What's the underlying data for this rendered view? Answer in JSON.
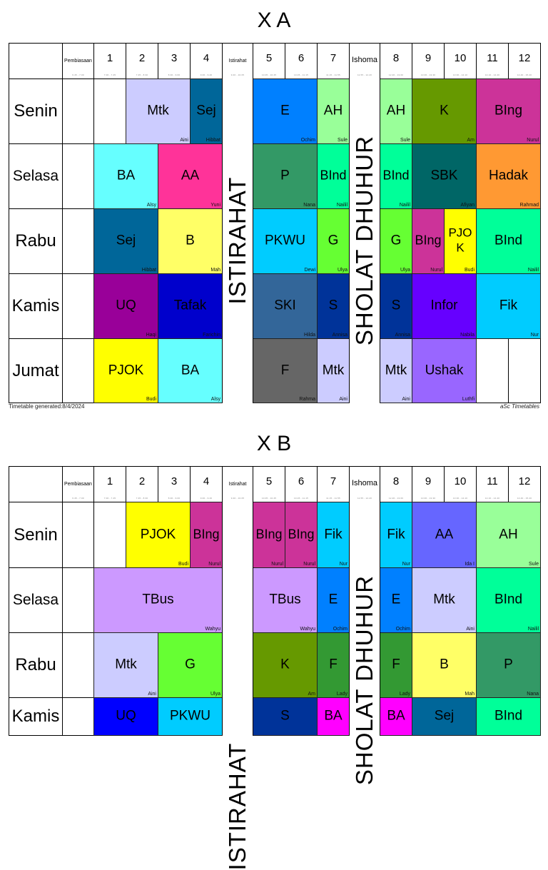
{
  "timetables": [
    {
      "title": "X A",
      "footer_left": "Timetable generated:8/4/2024",
      "footer_right": "aSc Timetables",
      "break_label": "ISTIRAHAT",
      "prayer_label": "SHOLAT DHUHUR",
      "columns": [
        {
          "label": "",
          "time": ""
        },
        {
          "label": "Pembiasaan",
          "time": "6.45 - 7.00"
        },
        {
          "label": "1",
          "time": "7.00 - 7.45"
        },
        {
          "label": "2",
          "time": "7.45 - 8.30"
        },
        {
          "label": "3",
          "time": "8.30 - 9.00"
        },
        {
          "label": "4",
          "time": "9.00 - 9.40"
        },
        {
          "label": "Istirahat",
          "time": "9.40 - 10.05"
        },
        {
          "label": "5",
          "time": "10.05 - 10.45"
        },
        {
          "label": "6",
          "time": "10.45 - 11.15"
        },
        {
          "label": "7",
          "time": "11.15 - 11.55"
        },
        {
          "label": "Ishoma",
          "time": "11.55 - 12.20"
        },
        {
          "label": "8",
          "time": "12.20 - 13.00"
        },
        {
          "label": "9",
          "time": "13.00 - 13.30"
        },
        {
          "label": "10",
          "time": "13.30 - 14.10"
        },
        {
          "label": "11",
          "time": "14.10 - 14.40"
        },
        {
          "label": "12",
          "time": "14.40 - 15.20"
        }
      ],
      "days": [
        "Senin",
        "Selasa",
        "Rabu",
        "Kamis",
        "Jumat"
      ],
      "lessons": [
        {
          "day": 0,
          "subject": "Mtk",
          "teacher": "Aini",
          "color": "#ccccff"
        },
        {
          "day": 0,
          "subject": "Sej",
          "teacher": "Hibbat",
          "color": "#006699"
        },
        {
          "day": 0,
          "subject": "E",
          "teacher": "Ochim",
          "color": "#0080ff"
        },
        {
          "day": 0,
          "subject": "AH",
          "teacher": "Sule",
          "color": "#99ff99"
        },
        {
          "day": 0,
          "subject": "AH",
          "teacher": "Sule",
          "color": "#99ff99"
        },
        {
          "day": 0,
          "subject": "K",
          "teacher": "Am",
          "color": "#669900"
        },
        {
          "day": 0,
          "subject": "BIng",
          "teacher": "Nurul",
          "color": "#cc3399"
        },
        {
          "day": 1,
          "subject": "BA",
          "teacher": "Alsy",
          "color": "#66ffff"
        },
        {
          "day": 1,
          "subject": "AA",
          "teacher": "Yuni",
          "color": "#ff3399"
        },
        {
          "day": 1,
          "subject": "P",
          "teacher": "Nana",
          "color": "#339966"
        },
        {
          "day": 1,
          "subject": "BInd",
          "teacher": "Nailil",
          "color": "#00ff99"
        },
        {
          "day": 1,
          "subject": "BInd",
          "teacher": "Nailil",
          "color": "#00ff99"
        },
        {
          "day": 1,
          "subject": "SBK",
          "teacher": "Afiyan",
          "color": "#006666"
        },
        {
          "day": 1,
          "subject": "Hadak",
          "teacher": "Rahmad",
          "color": "#ff9933"
        },
        {
          "day": 2,
          "subject": "Sej",
          "teacher": "Hibbat",
          "color": "#006699"
        },
        {
          "day": 2,
          "subject": "B",
          "teacher": "Mah",
          "color": "#ffff66"
        },
        {
          "day": 2,
          "subject": "PKWU",
          "teacher": "Dewi",
          "color": "#00ccff"
        },
        {
          "day": 2,
          "subject": "G",
          "teacher": "Ulya",
          "color": "#66ff33"
        },
        {
          "day": 2,
          "subject": "G",
          "teacher": "Ulya",
          "color": "#66ff33"
        },
        {
          "day": 2,
          "subject": "BIng",
          "teacher": "Nurul",
          "color": "#cc3399"
        },
        {
          "day": 2,
          "subject": "PJOK",
          "teacher": "Budi",
          "color": "#ffff00"
        },
        {
          "day": 2,
          "subject": "BInd",
          "teacher": "Nailil",
          "color": "#00ff99"
        },
        {
          "day": 3,
          "subject": "UQ",
          "teacher": "Haqi",
          "color": "#990099"
        },
        {
          "day": 3,
          "subject": "Tafak",
          "teacher": "Farichin",
          "color": "#0000cc"
        },
        {
          "day": 3,
          "subject": "SKI",
          "teacher": "Hilda",
          "color": "#336699"
        },
        {
          "day": 3,
          "subject": "S",
          "teacher": "Annisa",
          "color": "#003399"
        },
        {
          "day": 3,
          "subject": "S",
          "teacher": "Annisa",
          "color": "#003399"
        },
        {
          "day": 3,
          "subject": "Infor",
          "teacher": "Nabila",
          "color": "#6600ff"
        },
        {
          "day": 3,
          "subject": "Fik",
          "teacher": "Nur",
          "color": "#00ccff"
        },
        {
          "day": 4,
          "subject": "PJOK",
          "teacher": "Budi",
          "color": "#ffff00"
        },
        {
          "day": 4,
          "subject": "BA",
          "teacher": "Alsy",
          "color": "#66ffff"
        },
        {
          "day": 4,
          "subject": "F",
          "teacher": "Rahma",
          "color": "#666666"
        },
        {
          "day": 4,
          "subject": "Mtk",
          "teacher": "Aini",
          "color": "#ccccff"
        },
        {
          "day": 4,
          "subject": "Mtk",
          "teacher": "Aini",
          "color": "#ccccff"
        },
        {
          "day": 4,
          "subject": "Ushak",
          "teacher": "Luthfi",
          "color": "#9966ff"
        }
      ]
    },
    {
      "title": "X B",
      "break_label": "ISTIRAHAT",
      "prayer_label": "SHOLAT DHUHUR",
      "days": [
        "Senin",
        "Selasa",
        "Rabu",
        "Kamis"
      ],
      "lessons": [
        {
          "day": 0,
          "subject": "PJOK",
          "teacher": "Budi",
          "color": "#ffff00"
        },
        {
          "day": 0,
          "subject": "BIng",
          "teacher": "Nurul",
          "color": "#cc3399"
        },
        {
          "day": 0,
          "subject": "BIng",
          "teacher": "Nurul",
          "color": "#cc3399"
        },
        {
          "day": 0,
          "subject": "BIng",
          "teacher": "Nurul",
          "color": "#cc3399"
        },
        {
          "day": 0,
          "subject": "Fik",
          "teacher": "Nur",
          "color": "#00ccff"
        },
        {
          "day": 0,
          "subject": "Fik",
          "teacher": "Nur",
          "color": "#00ccff"
        },
        {
          "day": 0,
          "subject": "AA",
          "teacher": "Ida I",
          "color": "#6666ff"
        },
        {
          "day": 0,
          "subject": "AH",
          "teacher": "Sule",
          "color": "#99ff99"
        },
        {
          "day": 1,
          "subject": "TBus",
          "teacher": "Wahyu",
          "color": "#cc99ff"
        },
        {
          "day": 1,
          "subject": "TBus",
          "teacher": "Wahyu",
          "color": "#cc99ff"
        },
        {
          "day": 1,
          "subject": "E",
          "teacher": "Ochim",
          "color": "#0080ff"
        },
        {
          "day": 1,
          "subject": "E",
          "teacher": "Ochim",
          "color": "#0080ff"
        },
        {
          "day": 1,
          "subject": "Mtk",
          "teacher": "Aini",
          "color": "#ccccff"
        },
        {
          "day": 1,
          "subject": "BInd",
          "teacher": "Nailil",
          "color": "#00ff99"
        },
        {
          "day": 2,
          "subject": "Mtk",
          "teacher": "Aini",
          "color": "#ccccff"
        },
        {
          "day": 2,
          "subject": "G",
          "teacher": "Ulya",
          "color": "#66ff33"
        },
        {
          "day": 2,
          "subject": "K",
          "teacher": "Am",
          "color": "#669900"
        },
        {
          "day": 2,
          "subject": "F",
          "teacher": "Lady",
          "color": "#339933"
        },
        {
          "day": 2,
          "subject": "F",
          "teacher": "Lady",
          "color": "#339933"
        },
        {
          "day": 2,
          "subject": "B",
          "teacher": "Mah",
          "color": "#ffff66"
        },
        {
          "day": 2,
          "subject": "P",
          "teacher": "Nana",
          "color": "#339966"
        },
        {
          "day": 3,
          "subject": "UQ",
          "teacher": "",
          "color": "#0000ff"
        },
        {
          "day": 3,
          "subject": "PKWU",
          "teacher": "",
          "color": "#00ccff"
        },
        {
          "day": 3,
          "subject": "S",
          "teacher": "",
          "color": "#003399"
        },
        {
          "day": 3,
          "subject": "BA",
          "teacher": "",
          "color": "#ff00ff"
        },
        {
          "day": 3,
          "subject": "BA",
          "teacher": "",
          "color": "#ff00ff"
        },
        {
          "day": 3,
          "subject": "Sej",
          "teacher": "",
          "color": "#006699"
        },
        {
          "day": 3,
          "subject": "BInd",
          "teacher": "",
          "color": "#00ff99"
        }
      ]
    }
  ]
}
